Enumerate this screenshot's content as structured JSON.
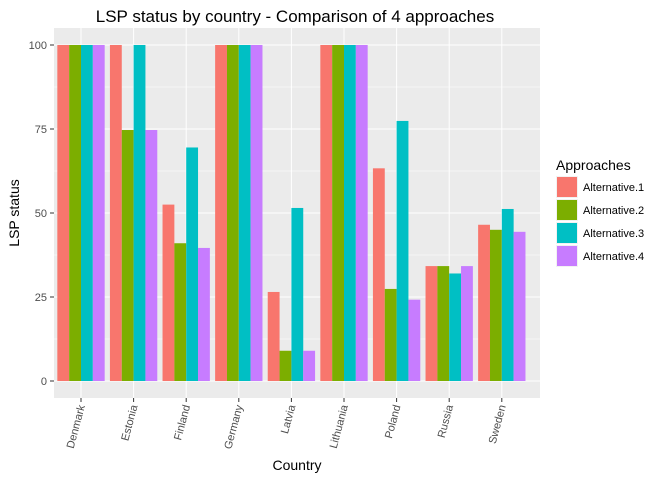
{
  "chart_data": {
    "type": "bar",
    "title": "LSP status by country - Comparison of 4 approaches",
    "xlabel": "Country",
    "ylabel": "LSP status",
    "ylim": [
      0,
      100
    ],
    "yticks": [
      0,
      25,
      50,
      75,
      100
    ],
    "grid": true,
    "legend_title": "Approaches",
    "legend_position": "right",
    "categories": [
      "Denmark",
      "Estonia",
      "Finland",
      "Germany",
      "Latvia",
      "Lithuania",
      "Poland",
      "Russia",
      "Sweden"
    ],
    "series": [
      {
        "name": "Alternative.1",
        "color": "#F8766D",
        "values": [
          100,
          100,
          52.5,
          100,
          26.5,
          100,
          63.3,
          34.2,
          46.5
        ]
      },
      {
        "name": "Alternative.2",
        "color": "#7CAE00",
        "values": [
          100,
          74.7,
          41,
          100,
          9,
          100,
          27.4,
          34.2,
          45
        ]
      },
      {
        "name": "Alternative.3",
        "color": "#00BFC4",
        "values": [
          100,
          100,
          69.5,
          100,
          51.5,
          100,
          77.4,
          32,
          51.2
        ]
      },
      {
        "name": "Alternative.4",
        "color": "#C77CFF",
        "values": [
          100,
          74.7,
          39.6,
          100,
          9,
          100,
          24.2,
          34.2,
          44.4
        ]
      }
    ]
  }
}
